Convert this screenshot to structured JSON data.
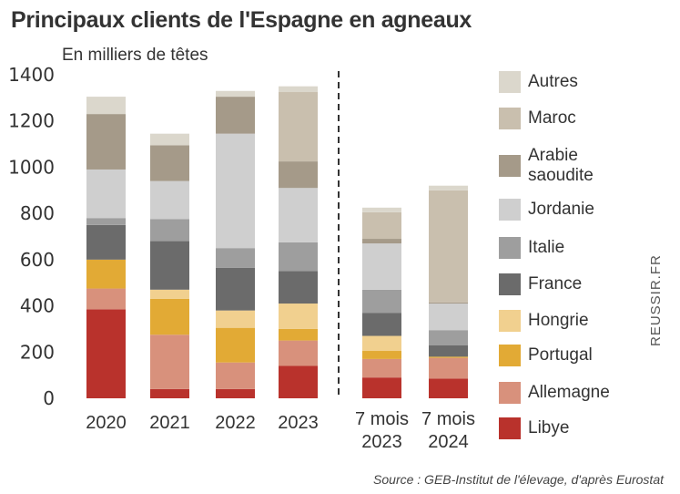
{
  "title": "Principaux clients de l'Espagne en agneaux",
  "unit_label": "En milliers de têtes",
  "source": "Source : GEB-Institut de l'élevage, d'après Eurostat",
  "credit": "REUSSIR.FR",
  "chart_data": {
    "type": "bar",
    "stacked": true,
    "title": "Principaux clients de l'Espagne en agneaux",
    "ylabel": "En milliers de têtes",
    "ylim": [
      0,
      1400
    ],
    "yticks": [
      0,
      200,
      400,
      600,
      800,
      1000,
      1200,
      1400
    ],
    "grid": false,
    "legend_position": "right",
    "categories": [
      "2020",
      "2021",
      "2022",
      "2023",
      "7 mois 2023",
      "7 mois 2024"
    ],
    "category_lines": [
      [
        "2020"
      ],
      [
        "2021"
      ],
      [
        "2022"
      ],
      [
        "2023"
      ],
      [
        "7 mois",
        "2023"
      ],
      [
        "7 mois",
        "2024"
      ]
    ],
    "separator_after_index": 3,
    "series": [
      {
        "name": "Libye",
        "color": "#b9322c",
        "values": [
          385,
          40,
          40,
          140,
          90,
          85
        ]
      },
      {
        "name": "Allemagne",
        "color": "#d8917c",
        "values": [
          90,
          235,
          115,
          110,
          80,
          90
        ]
      },
      {
        "name": "Portugal",
        "color": "#e2aa35",
        "values": [
          125,
          155,
          150,
          50,
          35,
          5
        ]
      },
      {
        "name": "Hongrie",
        "color": "#f1d08f",
        "values": [
          0,
          40,
          75,
          110,
          65,
          0
        ]
      },
      {
        "name": "France",
        "color": "#6b6b6b",
        "values": [
          150,
          210,
          185,
          140,
          100,
          50
        ]
      },
      {
        "name": "Italie",
        "color": "#9e9e9e",
        "values": [
          30,
          95,
          85,
          125,
          100,
          65
        ]
      },
      {
        "name": "Jordanie",
        "color": "#cfcfcf",
        "values": [
          210,
          165,
          495,
          235,
          200,
          115
        ]
      },
      {
        "name": "Arabie saoudite",
        "color": "#a59a89",
        "values": [
          240,
          155,
          160,
          115,
          20,
          5
        ]
      },
      {
        "name": "Maroc",
        "color": "#c9bfae",
        "values": [
          0,
          0,
          0,
          300,
          115,
          485
        ]
      },
      {
        "name": "Autres",
        "color": "#dbd7cc",
        "values": [
          75,
          50,
          25,
          25,
          20,
          20
        ]
      }
    ],
    "legend_order": [
      "Autres",
      "Maroc",
      "Arabie saoudite",
      "Jordanie",
      "Italie",
      "France",
      "Hongrie",
      "Portugal",
      "Allemagne",
      "Libye"
    ],
    "legend_lines": {
      "Arabie saoudite": [
        "Arabie",
        "saoudite"
      ]
    }
  }
}
